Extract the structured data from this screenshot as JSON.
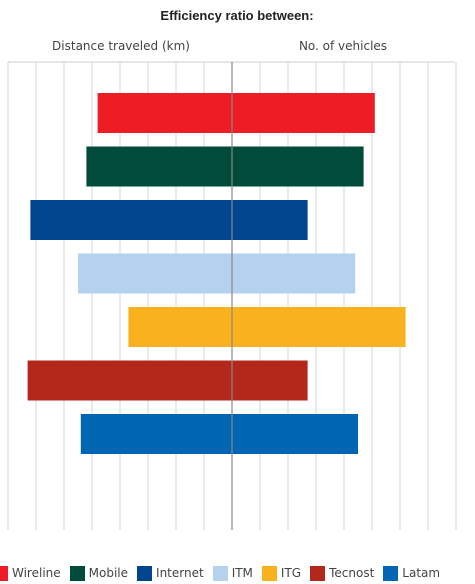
{
  "chart_data": {
    "type": "bar",
    "title": "Efficiency ratio between:",
    "left_header": "Distance traveled (km)",
    "right_header": "No. of vehicles",
    "grid": true,
    "legend_position": "bottom",
    "categories": [
      "Wireline",
      "Mobile",
      "Internet",
      "ITM",
      "ITG",
      "Tecnost",
      "Latam"
    ],
    "colors": [
      "#ee1c25",
      "#004b3a",
      "#00458e",
      "#b4d1ee",
      "#f9b21d",
      "#b2291c",
      "#0066b3"
    ],
    "series": [
      {
        "name": "Distance traveled (km)",
        "values": [
          4.8,
          5.2,
          7.2,
          5.5,
          3.7,
          7.3,
          5.4
        ]
      },
      {
        "name": "No. of vehicles",
        "values": [
          5.1,
          4.7,
          2.7,
          4.4,
          6.2,
          2.7,
          4.5
        ]
      }
    ],
    "xlim": [
      0,
      8
    ]
  }
}
